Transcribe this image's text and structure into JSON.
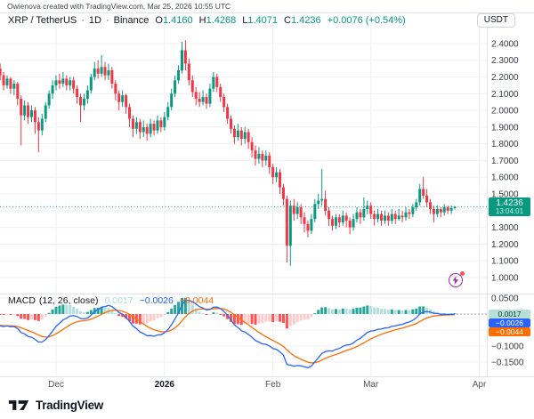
{
  "attribution": "Owienova created with TradingView.com, Mar 25, 2026 10:55 UTC",
  "quote_currency": "USDT",
  "legend": {
    "symbol": "XRP / TetherUS",
    "separator": "·",
    "interval": "1D",
    "exchange": "Binance",
    "ohlc": {
      "open_label": "O",
      "open": "1.4160",
      "high_label": "H",
      "high": "1.4268",
      "low_label": "L",
      "low": "1.4071",
      "close_label": "C",
      "close": "1.4236",
      "change": "+0.0076 (+0.54%)"
    }
  },
  "price_label": {
    "price": "1.4236",
    "countdown": "13:04:01"
  },
  "macd_panel": {
    "title": "MACD",
    "params": "(12, 26, close)",
    "hist_value": "0.0017",
    "macd_value": "−0.0026",
    "signal_value": "−0.0044",
    "axis_badges": {
      "hist": "0.0017",
      "macd": "−0.0026",
      "signal": "−0.0044"
    }
  },
  "footer": {
    "brand": "TradingView"
  },
  "colors": {
    "up": "#089981",
    "down": "#f23645",
    "grid": "#eef0f3",
    "separator": "#e0e3eb",
    "axis_text": "#363a45",
    "time_text": "#50535e",
    "time_text_bold": "#131722",
    "price_line": "#089981",
    "macd_line": "#2962ff",
    "signal_line": "#ff6d00",
    "hist_up": "#26a69a",
    "hist_up_fade": "#b2dfdb",
    "hist_down": "#ff5252",
    "hist_down_fade": "#fccbcd",
    "dashed_ext": "#9598a1"
  },
  "chart_data": {
    "type": "candlestick",
    "symbol": "XRP/USDT",
    "timeframe": "1D",
    "exchange": "Binance",
    "x_range": [
      "2025-11-15",
      "2026-03-25"
    ],
    "current_price": 1.4236,
    "price_axis": {
      "y_range": [
        0.904,
        2.586
      ],
      "gridlines": [
        2.4,
        2.3,
        2.2,
        2.1,
        2.0,
        1.9,
        1.8,
        1.7,
        1.6,
        1.5,
        1.4,
        1.3,
        1.2,
        1.1,
        1.0
      ]
    },
    "price_ticks": [
      {
        "v": 2.4,
        "label": "2.4000"
      },
      {
        "v": 2.3,
        "label": "2.3000"
      },
      {
        "v": 2.2,
        "label": "2.2000"
      },
      {
        "v": 2.1,
        "label": "2.1000"
      },
      {
        "v": 2.0,
        "label": "2.0000"
      },
      {
        "v": 1.9,
        "label": "1.9000"
      },
      {
        "v": 1.8,
        "label": "1.8000"
      },
      {
        "v": 1.7,
        "label": "1.7000"
      },
      {
        "v": 1.6,
        "label": "1.6000"
      },
      {
        "v": 1.5,
        "label": "1.5000"
      },
      {
        "v": 1.3,
        "label": "1.3000"
      },
      {
        "v": 1.2,
        "label": "1.2000"
      },
      {
        "v": 1.1,
        "label": "1.1000"
      },
      {
        "v": 1.0,
        "label": "1.0000"
      }
    ],
    "time_ticks": [
      {
        "label": "Dec",
        "day": 16
      },
      {
        "label": "2026",
        "day": 47,
        "bold": true
      },
      {
        "label": "Feb",
        "day": 78
      },
      {
        "label": "Mar",
        "day": 106
      },
      {
        "label": "Apr",
        "day": 137
      }
    ],
    "candles": [
      [
        2.25,
        2.28,
        2.18,
        2.21
      ],
      [
        2.21,
        2.23,
        2.12,
        2.15
      ],
      [
        2.15,
        2.21,
        2.13,
        2.19
      ],
      [
        2.19,
        2.2,
        2.1,
        2.13
      ],
      [
        2.13,
        2.18,
        2.09,
        2.16
      ],
      [
        2.16,
        2.17,
        2.03,
        2.07
      ],
      [
        2.07,
        2.09,
        1.79,
        1.97
      ],
      [
        1.97,
        2.06,
        1.94,
        2.03
      ],
      [
        2.03,
        2.05,
        1.92,
        1.96
      ],
      [
        1.96,
        2.03,
        1.93,
        2.0
      ],
      [
        2.0,
        2.02,
        1.86,
        1.93
      ],
      [
        1.93,
        1.96,
        1.75,
        1.88
      ],
      [
        1.88,
        1.98,
        1.85,
        1.95
      ],
      [
        1.95,
        2.05,
        1.93,
        2.03
      ],
      [
        2.03,
        2.12,
        2.01,
        2.1
      ],
      [
        2.1,
        2.18,
        2.07,
        2.15
      ],
      [
        2.15,
        2.21,
        2.12,
        2.18
      ],
      [
        2.18,
        2.22,
        2.13,
        2.16
      ],
      [
        2.16,
        2.23,
        2.14,
        2.19
      ],
      [
        2.19,
        2.21,
        2.12,
        2.15
      ],
      [
        2.15,
        2.2,
        2.12,
        2.18
      ],
      [
        2.18,
        2.2,
        2.1,
        2.13
      ],
      [
        2.13,
        2.15,
        2.04,
        2.08
      ],
      [
        2.08,
        2.1,
        1.93,
        2.03
      ],
      [
        2.03,
        2.1,
        2.0,
        2.07
      ],
      [
        2.07,
        2.15,
        2.04,
        2.12
      ],
      [
        2.12,
        2.22,
        2.1,
        2.2
      ],
      [
        2.2,
        2.29,
        2.18,
        2.25
      ],
      [
        2.25,
        2.3,
        2.19,
        2.22
      ],
      [
        2.22,
        2.33,
        2.2,
        2.26
      ],
      [
        2.26,
        2.29,
        2.18,
        2.21
      ],
      [
        2.21,
        2.28,
        2.18,
        2.24
      ],
      [
        2.24,
        2.26,
        2.13,
        2.16
      ],
      [
        2.16,
        2.18,
        2.06,
        2.1
      ],
      [
        2.1,
        2.12,
        2.0,
        2.05
      ],
      [
        2.05,
        2.12,
        2.02,
        2.09
      ],
      [
        2.09,
        2.1,
        1.98,
        2.02
      ],
      [
        2.02,
        2.04,
        1.9,
        1.95
      ],
      [
        1.95,
        1.97,
        1.84,
        1.89
      ],
      [
        1.89,
        1.96,
        1.86,
        1.93
      ],
      [
        1.93,
        1.95,
        1.83,
        1.87
      ],
      [
        1.87,
        1.94,
        1.84,
        1.9
      ],
      [
        1.9,
        1.92,
        1.82,
        1.86
      ],
      [
        1.86,
        1.95,
        1.84,
        1.92
      ],
      [
        1.92,
        1.94,
        1.85,
        1.88
      ],
      [
        1.88,
        1.97,
        1.86,
        1.94
      ],
      [
        1.94,
        1.96,
        1.87,
        1.9
      ],
      [
        1.9,
        1.99,
        1.88,
        1.96
      ],
      [
        1.96,
        2.05,
        1.94,
        2.02
      ],
      [
        2.02,
        2.13,
        2.0,
        2.1
      ],
      [
        2.1,
        2.21,
        2.08,
        2.18
      ],
      [
        2.18,
        2.27,
        2.16,
        2.24
      ],
      [
        2.24,
        2.41,
        2.22,
        2.36
      ],
      [
        2.36,
        2.42,
        2.24,
        2.28
      ],
      [
        2.28,
        2.31,
        2.15,
        2.18
      ],
      [
        2.18,
        2.21,
        2.08,
        2.11
      ],
      [
        2.11,
        2.14,
        2.03,
        2.07
      ],
      [
        2.07,
        2.11,
        2.02,
        2.05
      ],
      [
        2.05,
        2.12,
        2.03,
        2.08
      ],
      [
        2.08,
        2.1,
        2.01,
        2.04
      ],
      [
        2.04,
        2.16,
        2.02,
        2.13
      ],
      [
        2.13,
        2.23,
        2.11,
        2.2
      ],
      [
        2.2,
        2.22,
        2.11,
        2.14
      ],
      [
        2.14,
        2.16,
        2.05,
        2.08
      ],
      [
        2.08,
        2.1,
        1.99,
        2.02
      ],
      [
        2.02,
        2.04,
        1.92,
        1.95
      ],
      [
        1.95,
        1.97,
        1.86,
        1.89
      ],
      [
        1.89,
        1.91,
        1.8,
        1.84
      ],
      [
        1.84,
        1.92,
        1.82,
        1.88
      ],
      [
        1.88,
        1.9,
        1.79,
        1.83
      ],
      [
        1.83,
        1.9,
        1.8,
        1.87
      ],
      [
        1.87,
        1.89,
        1.77,
        1.81
      ],
      [
        1.81,
        1.84,
        1.72,
        1.76
      ],
      [
        1.76,
        1.79,
        1.67,
        1.71
      ],
      [
        1.71,
        1.78,
        1.68,
        1.74
      ],
      [
        1.74,
        1.76,
        1.66,
        1.7
      ],
      [
        1.7,
        1.76,
        1.67,
        1.73
      ],
      [
        1.73,
        1.75,
        1.62,
        1.66
      ],
      [
        1.66,
        1.68,
        1.56,
        1.6
      ],
      [
        1.6,
        1.66,
        1.57,
        1.63
      ],
      [
        1.63,
        1.65,
        1.5,
        1.54
      ],
      [
        1.54,
        1.56,
        1.43,
        1.47
      ],
      [
        1.47,
        1.49,
        1.09,
        1.19
      ],
      [
        1.19,
        1.46,
        1.07,
        1.43
      ],
      [
        1.43,
        1.47,
        1.34,
        1.38
      ],
      [
        1.38,
        1.45,
        1.35,
        1.42
      ],
      [
        1.42,
        1.44,
        1.32,
        1.36
      ],
      [
        1.36,
        1.39,
        1.27,
        1.32
      ],
      [
        1.32,
        1.34,
        1.24,
        1.28
      ],
      [
        1.28,
        1.38,
        1.26,
        1.35
      ],
      [
        1.35,
        1.47,
        1.33,
        1.44
      ],
      [
        1.44,
        1.5,
        1.41,
        1.46
      ],
      [
        1.46,
        1.65,
        1.43,
        1.47
      ],
      [
        1.47,
        1.52,
        1.37,
        1.4
      ],
      [
        1.4,
        1.42,
        1.31,
        1.35
      ],
      [
        1.35,
        1.37,
        1.28,
        1.31
      ],
      [
        1.31,
        1.38,
        1.29,
        1.36
      ],
      [
        1.36,
        1.38,
        1.3,
        1.33
      ],
      [
        1.33,
        1.4,
        1.31,
        1.37
      ],
      [
        1.37,
        1.39,
        1.3,
        1.34
      ],
      [
        1.34,
        1.36,
        1.26,
        1.3
      ],
      [
        1.3,
        1.38,
        1.28,
        1.35
      ],
      [
        1.35,
        1.42,
        1.33,
        1.39
      ],
      [
        1.39,
        1.41,
        1.32,
        1.36
      ],
      [
        1.36,
        1.48,
        1.34,
        1.41
      ],
      [
        1.41,
        1.46,
        1.38,
        1.43
      ],
      [
        1.43,
        1.45,
        1.35,
        1.38
      ],
      [
        1.38,
        1.4,
        1.31,
        1.35
      ],
      [
        1.35,
        1.41,
        1.33,
        1.38
      ],
      [
        1.38,
        1.4,
        1.31,
        1.34
      ],
      [
        1.34,
        1.4,
        1.32,
        1.37
      ],
      [
        1.37,
        1.39,
        1.31,
        1.34
      ],
      [
        1.34,
        1.41,
        1.32,
        1.38
      ],
      [
        1.38,
        1.4,
        1.32,
        1.35
      ],
      [
        1.35,
        1.41,
        1.34,
        1.37
      ],
      [
        1.37,
        1.4,
        1.33,
        1.36
      ],
      [
        1.36,
        1.42,
        1.34,
        1.39
      ],
      [
        1.39,
        1.41,
        1.35,
        1.38
      ],
      [
        1.38,
        1.44,
        1.36,
        1.42
      ],
      [
        1.42,
        1.47,
        1.4,
        1.45
      ],
      [
        1.45,
        1.56,
        1.43,
        1.53
      ],
      [
        1.53,
        1.6,
        1.47,
        1.49
      ],
      [
        1.49,
        1.53,
        1.42,
        1.45
      ],
      [
        1.45,
        1.47,
        1.38,
        1.41
      ],
      [
        1.41,
        1.43,
        1.33,
        1.38
      ],
      [
        1.38,
        1.43,
        1.36,
        1.41
      ],
      [
        1.41,
        1.42,
        1.36,
        1.39
      ],
      [
        1.39,
        1.44,
        1.37,
        1.42
      ],
      [
        1.42,
        1.43,
        1.38,
        1.4
      ],
      [
        1.4,
        1.43,
        1.38,
        1.416
      ],
      [
        1.416,
        1.4268,
        1.4071,
        1.4236
      ]
    ],
    "indicator": {
      "name": "MACD",
      "fast": 12,
      "slow": 26,
      "signal_period": 9,
      "source": "close",
      "seeds": {
        "ema12": 2.21,
        "ema26": 2.25,
        "signal": -0.035
      },
      "y_range": [
        -0.1944,
        0.0611
      ],
      "gridlines": [
        0.05,
        -0.05,
        -0.1,
        -0.15
      ],
      "axis_ticks": [
        {
          "v": 0.05,
          "label": "0.0500"
        },
        {
          "v": -0.1,
          "label": "−0.1000"
        },
        {
          "v": -0.15,
          "label": "−0.1500"
        }
      ],
      "last_values": {
        "histogram": 0.0017,
        "macd": -0.0026,
        "signal": -0.0044
      }
    }
  }
}
